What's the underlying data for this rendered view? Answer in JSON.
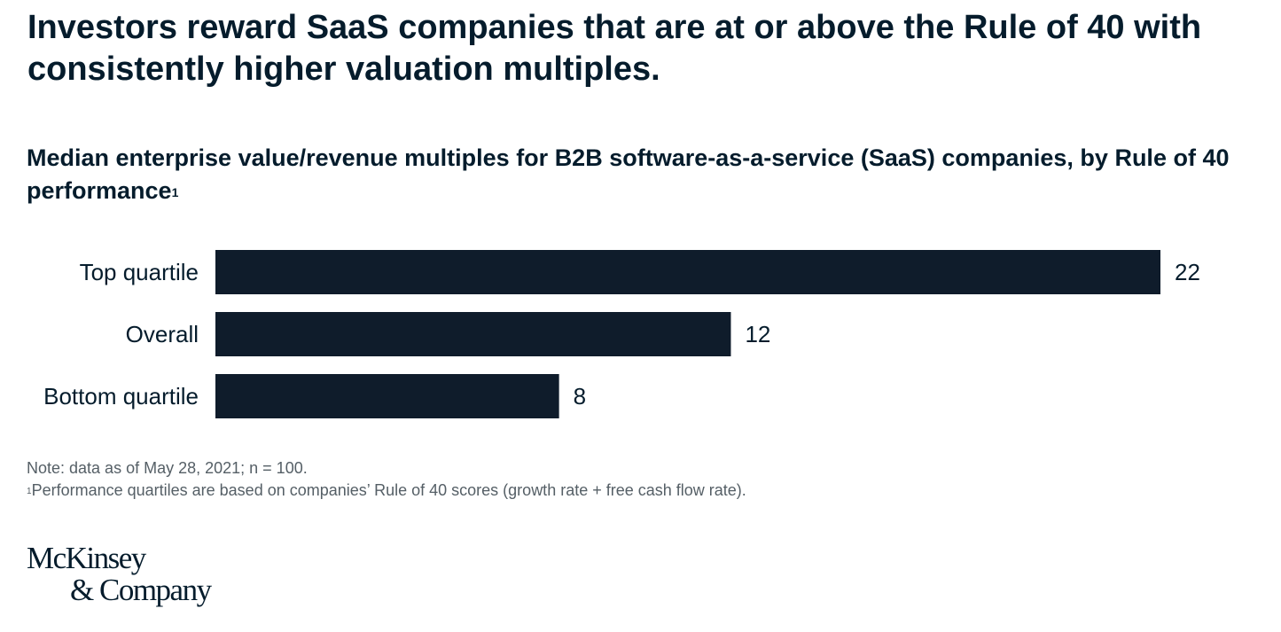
{
  "headline": "Investors reward SaaS companies that are at or above the Rule of 40 with consistently higher valuation multiples.",
  "subtitle": "Median enterprise value/revenue multiples for B2B software-as-a-service (SaaS) companies, by Rule of 40 performance",
  "subtitle_footnote_marker": "1",
  "notes": {
    "note": "Note: data as of May 28, 2021; n = 100.",
    "footnote_marker": "1",
    "footnote": "Performance quartiles are based on companies’ Rule of 40 scores (growth rate + free cash flow rate)."
  },
  "logo": {
    "line1": "McKinsey",
    "line2": "& Company"
  },
  "colors": {
    "bar": "#0f1c2b",
    "text": "#051c2c",
    "note": "#555f66"
  },
  "chart_data": {
    "type": "bar",
    "orientation": "horizontal",
    "categories": [
      "Top quartile",
      "Overall",
      "Bottom quartile"
    ],
    "values": [
      22,
      12,
      8
    ],
    "data_labels": [
      "22",
      "12",
      "8"
    ],
    "xlim": [
      0,
      22
    ],
    "grid": false
  }
}
